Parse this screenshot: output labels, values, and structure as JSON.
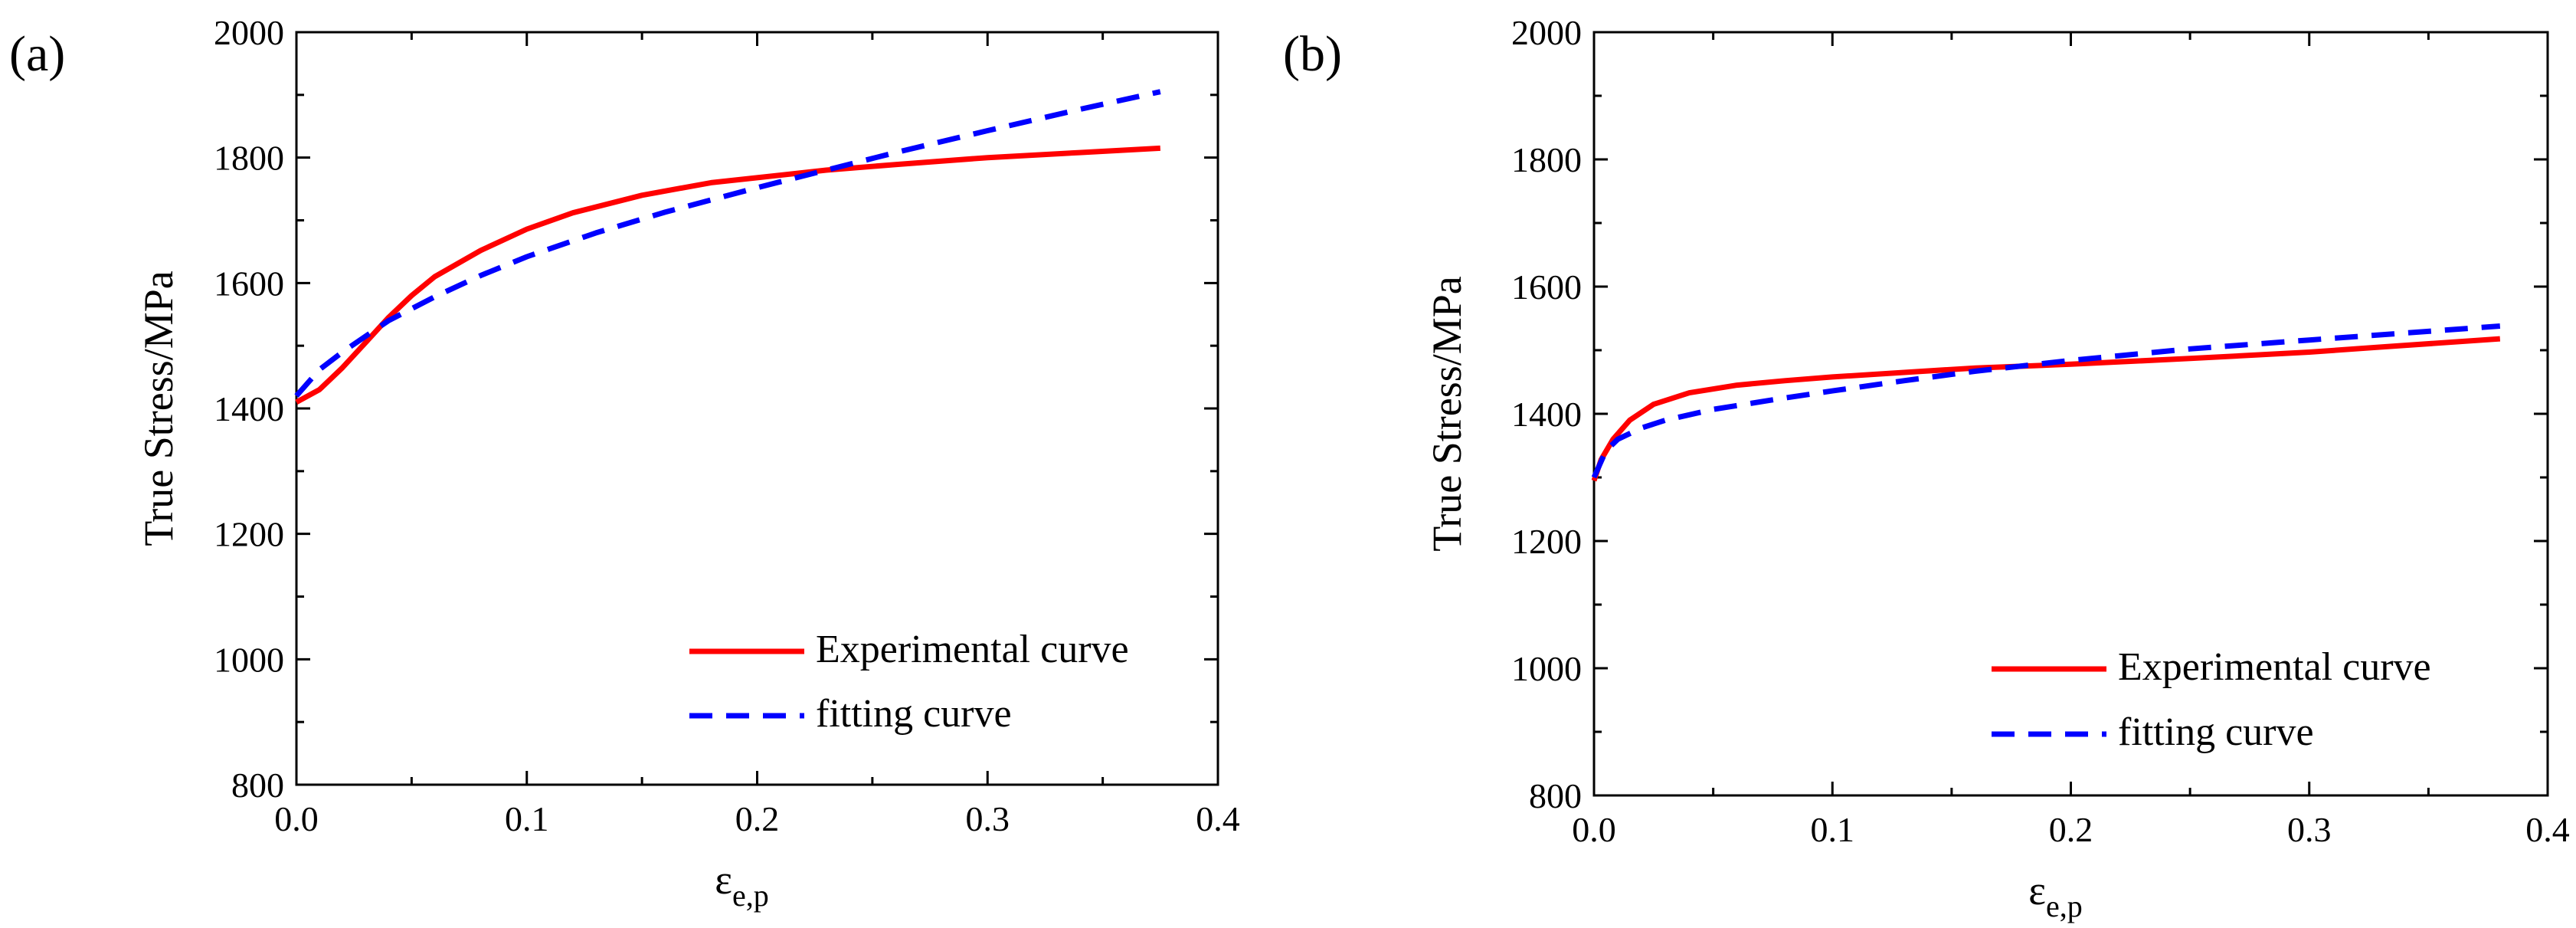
{
  "chart_data": [
    {
      "panel_label": "(a)",
      "type": "line",
      "ylabel": "True Stress/MPa",
      "xlabel": {
        "main": "ε",
        "sub": "e,p"
      },
      "xlim": [
        0.0,
        0.4
      ],
      "ylim": [
        800,
        2000
      ],
      "x_ticks": [
        "0.0",
        "0.1",
        "0.2",
        "0.3",
        "0.4"
      ],
      "y_ticks": [
        "800",
        "1000",
        "1200",
        "1400",
        "1600",
        "1800",
        "2000"
      ],
      "grid": false,
      "legend_position": "bottom-right",
      "series": [
        {
          "name": "Experimental curve",
          "color": "#ff0000",
          "style": "solid",
          "x": [
            0.0,
            0.01,
            0.02,
            0.03,
            0.04,
            0.05,
            0.06,
            0.08,
            0.1,
            0.12,
            0.15,
            0.18,
            0.2,
            0.23,
            0.26,
            0.3,
            0.34,
            0.375
          ],
          "y": [
            1410,
            1430,
            1465,
            1505,
            1545,
            1580,
            1610,
            1652,
            1686,
            1712,
            1740,
            1760,
            1768,
            1780,
            1789,
            1800,
            1808,
            1815
          ]
        },
        {
          "name": "fitting curve",
          "color": "#0000ff",
          "style": "dashed",
          "x": [
            0.0,
            0.01,
            0.02,
            0.04,
            0.06,
            0.08,
            0.1,
            0.13,
            0.16,
            0.2,
            0.23,
            0.26,
            0.3,
            0.34,
            0.375
          ],
          "y": [
            1420,
            1462,
            1490,
            1540,
            1578,
            1612,
            1642,
            1680,
            1713,
            1752,
            1780,
            1808,
            1843,
            1877,
            1905
          ]
        }
      ]
    },
    {
      "panel_label": "(b)",
      "type": "line",
      "ylabel": "True Stress/MPa",
      "xlabel": {
        "main": "ε",
        "sub": "e,p"
      },
      "xlim": [
        0.0,
        0.4
      ],
      "ylim": [
        800,
        2000
      ],
      "x_ticks": [
        "0.0",
        "0.1",
        "0.2",
        "0.3",
        "0.4"
      ],
      "y_ticks": [
        "800",
        "1000",
        "1200",
        "1400",
        "1600",
        "1800",
        "2000"
      ],
      "grid": false,
      "legend_position": "bottom-right",
      "series": [
        {
          "name": "Experimental curve",
          "color": "#ff0000",
          "style": "solid",
          "x": [
            0.0,
            0.003,
            0.008,
            0.015,
            0.025,
            0.04,
            0.06,
            0.08,
            0.1,
            0.13,
            0.16,
            0.2,
            0.25,
            0.3,
            0.33,
            0.38
          ],
          "y": [
            1295,
            1328,
            1360,
            1390,
            1415,
            1433,
            1445,
            1452,
            1458,
            1465,
            1472,
            1478,
            1487,
            1497,
            1505,
            1518
          ]
        },
        {
          "name": "fitting curve",
          "color": "#0000ff",
          "style": "dashed",
          "x": [
            0.0,
            0.005,
            0.01,
            0.02,
            0.03,
            0.05,
            0.08,
            0.1,
            0.13,
            0.16,
            0.2,
            0.25,
            0.3,
            0.34,
            0.38
          ],
          "y": [
            1300,
            1342,
            1360,
            1378,
            1390,
            1407,
            1425,
            1436,
            1452,
            1467,
            1484,
            1502,
            1516,
            1527,
            1538
          ]
        }
      ]
    }
  ]
}
